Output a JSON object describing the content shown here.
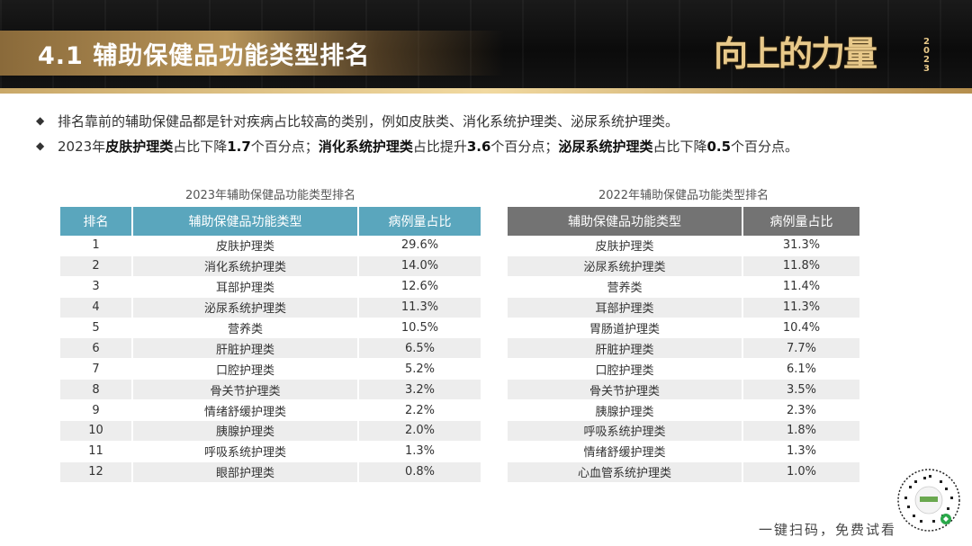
{
  "header": {
    "title": "4.1  辅助保健品功能类型排名",
    "brand": "向上的力量",
    "brand_year": "2023"
  },
  "bullets": [
    {
      "segments": [
        {
          "text": "排名靠前的辅助保健品都是针对疾病占比较高的类别，例如皮肤类、消化系统护理类、泌尿系统护理类。",
          "bold": false
        }
      ]
    },
    {
      "segments": [
        {
          "text": "2023年",
          "bold": false
        },
        {
          "text": "皮肤护理类",
          "bold": true
        },
        {
          "text": "占比下降",
          "bold": false
        },
        {
          "text": "1.7",
          "bold": true
        },
        {
          "text": "个百分点；",
          "bold": false
        },
        {
          "text": "消化系统护理类",
          "bold": true
        },
        {
          "text": "占比提升",
          "bold": false
        },
        {
          "text": "3.6",
          "bold": true
        },
        {
          "text": "个百分点；",
          "bold": false
        },
        {
          "text": "泌尿系统护理类",
          "bold": true
        },
        {
          "text": "占比下降",
          "bold": false
        },
        {
          "text": "0.5",
          "bold": true
        },
        {
          "text": "个百分点。",
          "bold": false
        }
      ]
    }
  ],
  "table2023": {
    "caption": "2023年辅助保健品功能类型排名",
    "headers": [
      "排名",
      "辅助保健品功能类型",
      "病例量占比"
    ],
    "rows": [
      [
        "1",
        "皮肤护理类",
        "29.6%"
      ],
      [
        "2",
        "消化系统护理类",
        "14.0%"
      ],
      [
        "3",
        "耳部护理类",
        "12.6%"
      ],
      [
        "4",
        "泌尿系统护理类",
        "11.3%"
      ],
      [
        "5",
        "营养类",
        "10.5%"
      ],
      [
        "6",
        "肝脏护理类",
        "6.5%"
      ],
      [
        "7",
        "口腔护理类",
        "5.2%"
      ],
      [
        "8",
        "骨关节护理类",
        "3.2%"
      ],
      [
        "9",
        "情绪舒缓护理类",
        "2.2%"
      ],
      [
        "10",
        "胰腺护理类",
        "2.0%"
      ],
      [
        "11",
        "呼吸系统护理类",
        "1.3%"
      ],
      [
        "12",
        "眼部护理类",
        "0.8%"
      ]
    ]
  },
  "table2022": {
    "caption": "2022年辅助保健品功能类型排名",
    "headers": [
      "辅助保健品功能类型",
      "病例量占比"
    ],
    "rows": [
      [
        "皮肤护理类",
        "31.3%"
      ],
      [
        "泌尿系统护理类",
        "11.8%"
      ],
      [
        "营养类",
        "11.4%"
      ],
      [
        "耳部护理类",
        "11.3%"
      ],
      [
        "胃肠道护理类",
        "10.4%"
      ],
      [
        "肝脏护理类",
        "7.7%"
      ],
      [
        "口腔护理类",
        "6.1%"
      ],
      [
        "骨关节护理类",
        "3.5%"
      ],
      [
        "胰腺护理类",
        "2.3%"
      ],
      [
        "呼吸系统护理类",
        "1.8%"
      ],
      [
        "情绪舒缓护理类",
        "1.3%"
      ],
      [
        "心血管系统护理类",
        "1.0%"
      ]
    ]
  },
  "qr": {
    "caption": "一键扫码，免费试看",
    "icon": "qr-code-icon"
  },
  "colors": {
    "table2023_header": "#5aa6bd",
    "table2022_header": "#737373",
    "gold": "#c9a868"
  }
}
